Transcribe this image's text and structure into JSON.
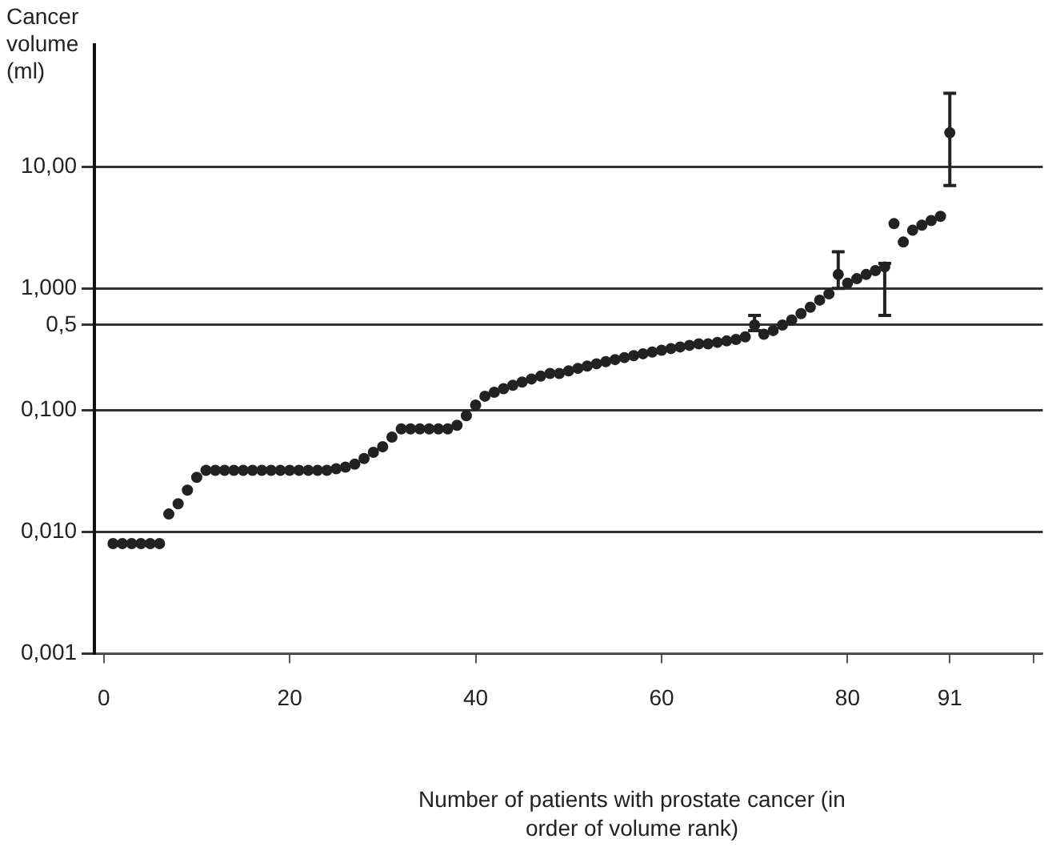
{
  "chart_data": {
    "type": "scatter",
    "xlabel": "Number of patients with prostate cancer (in order of volume rank)",
    "ylabel": "Cancer volume (ml)",
    "x": [
      1,
      2,
      3,
      4,
      5,
      6,
      7,
      8,
      9,
      10,
      11,
      12,
      13,
      14,
      15,
      16,
      17,
      18,
      19,
      20,
      21,
      22,
      23,
      24,
      25,
      26,
      27,
      28,
      29,
      30,
      31,
      32,
      33,
      34,
      35,
      36,
      37,
      38,
      39,
      40,
      41,
      42,
      43,
      44,
      45,
      46,
      47,
      48,
      49,
      50,
      51,
      52,
      53,
      54,
      55,
      56,
      57,
      58,
      59,
      60,
      61,
      62,
      63,
      64,
      65,
      66,
      67,
      68,
      69,
      70,
      71,
      72,
      73,
      74,
      75,
      76,
      77,
      78,
      79,
      80,
      81,
      82,
      83,
      84,
      85,
      86,
      87,
      88,
      89,
      90,
      91
    ],
    "values": [
      0.008,
      0.008,
      0.008,
      0.008,
      0.008,
      0.008,
      0.014,
      0.017,
      0.022,
      0.028,
      0.032,
      0.032,
      0.032,
      0.032,
      0.032,
      0.032,
      0.032,
      0.032,
      0.032,
      0.032,
      0.032,
      0.032,
      0.032,
      0.032,
      0.033,
      0.034,
      0.036,
      0.04,
      0.045,
      0.05,
      0.06,
      0.07,
      0.07,
      0.07,
      0.07,
      0.07,
      0.07,
      0.075,
      0.09,
      0.11,
      0.13,
      0.14,
      0.15,
      0.16,
      0.17,
      0.18,
      0.19,
      0.2,
      0.2,
      0.21,
      0.22,
      0.23,
      0.24,
      0.25,
      0.26,
      0.27,
      0.28,
      0.29,
      0.3,
      0.31,
      0.32,
      0.33,
      0.34,
      0.35,
      0.35,
      0.36,
      0.37,
      0.38,
      0.4,
      0.5,
      0.42,
      0.45,
      0.5,
      0.55,
      0.62,
      0.7,
      0.8,
      0.9,
      1.3,
      1.1,
      1.2,
      1.3,
      1.4,
      1.5,
      3.4,
      2.4,
      3,
      3.3,
      3.6,
      3.9,
      19
    ],
    "errors": [
      null,
      null,
      null,
      null,
      null,
      null,
      null,
      null,
      null,
      null,
      null,
      null,
      null,
      null,
      null,
      null,
      null,
      null,
      null,
      null,
      null,
      null,
      null,
      null,
      null,
      null,
      null,
      null,
      null,
      null,
      null,
      null,
      null,
      null,
      null,
      null,
      null,
      null,
      null,
      null,
      null,
      null,
      null,
      null,
      null,
      null,
      null,
      null,
      null,
      null,
      null,
      null,
      null,
      null,
      null,
      null,
      null,
      null,
      null,
      null,
      null,
      null,
      null,
      null,
      null,
      null,
      null,
      null,
      null,
      [
        0.45,
        0.6
      ],
      null,
      null,
      null,
      null,
      null,
      null,
      null,
      null,
      [
        1,
        2
      ],
      null,
      null,
      null,
      null,
      [
        0.6,
        1.6
      ],
      null,
      null,
      null,
      null,
      null,
      null,
      [
        7,
        40
      ]
    ],
    "color": "#222222",
    "marker": "circle",
    "log": "y",
    "grid": "y",
    "xlim": [
      -1,
      101
    ],
    "xticks": [
      0,
      20,
      40,
      60,
      80,
      91,
      {
        "value": 100,
        "label": null
      }
    ],
    "ylim": [
      0.001,
      100
    ],
    "yticks": [
      {
        "value": 0.001,
        "label": "0,001"
      },
      {
        "value": 0.01,
        "label": "0,010"
      },
      {
        "value": 0.1,
        "label": "0,100"
      },
      {
        "value": 0.5,
        "label": "0,5"
      },
      {
        "value": 1,
        "label": "1,000"
      },
      {
        "value": 10,
        "label": "10,00"
      }
    ]
  }
}
